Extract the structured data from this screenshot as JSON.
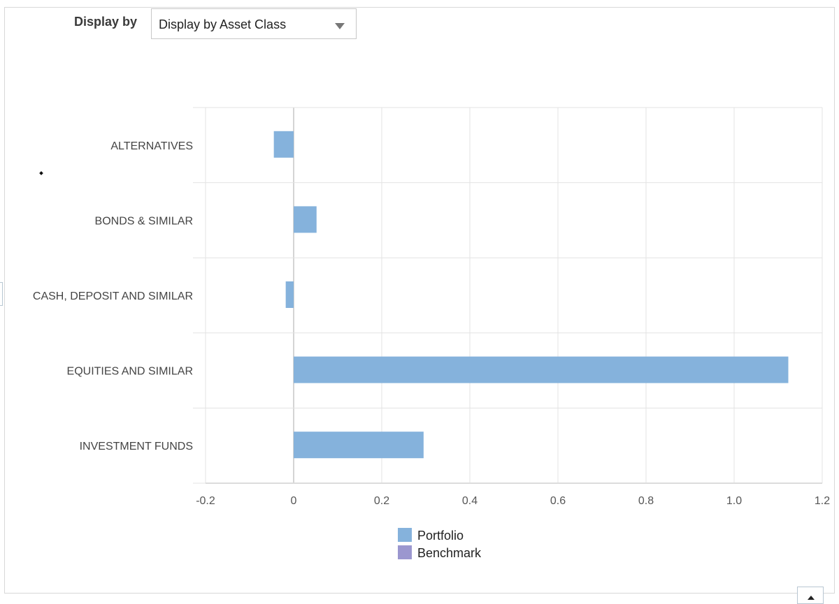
{
  "controls": {
    "display_by_label": "Display by",
    "display_by_value": "Display by Asset Class"
  },
  "colors": {
    "portfolio": "#85b2dc",
    "benchmark": "#9b97cf",
    "grid": "#e3e3e3",
    "zero_line": "#a9a9a9"
  },
  "chart_data": {
    "type": "bar",
    "orientation": "horizontal",
    "categories": [
      "ALTERNATIVES",
      "BONDS & SIMILAR",
      "CASH, DEPOSIT AND SIMILAR",
      "EQUITIES AND SIMILAR",
      "INVESTMENT FUNDS"
    ],
    "series": [
      {
        "name": "Portfolio",
        "values": [
          -0.045,
          0.052,
          -0.018,
          1.123,
          0.295
        ]
      },
      {
        "name": "Benchmark",
        "values": [
          null,
          null,
          null,
          null,
          null
        ]
      }
    ],
    "x_ticks": [
      "-0.2",
      "0",
      "0.2",
      "0.4",
      "0.6",
      "0.8",
      "1.0",
      "1.2"
    ],
    "xlim": [
      -0.2,
      1.2
    ],
    "grid": true,
    "legend_position": "bottom-center",
    "title": "",
    "xlabel": "",
    "ylabel": ""
  }
}
